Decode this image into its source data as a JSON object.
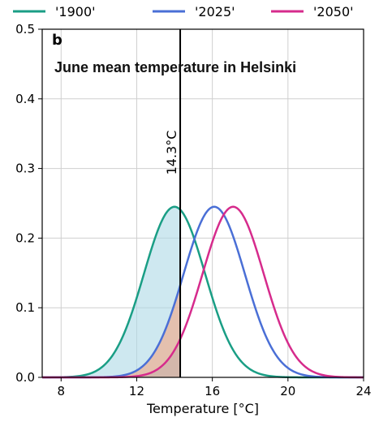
{
  "chart_data": {
    "type": "line",
    "panel_label": "b",
    "title": "June mean temperature in Helsinki",
    "xlabel": "Temperature [°C]",
    "ylabel": "",
    "xlim": [
      7,
      24
    ],
    "ylim": [
      0,
      0.5
    ],
    "xticks": [
      "8",
      "12",
      "16",
      "20",
      "24"
    ],
    "yticks": [
      "0.0",
      "0.1",
      "0.2",
      "0.3",
      "0.4",
      "0.5"
    ],
    "grid": true,
    "legend_position": "top",
    "threshold": {
      "x": 14.3,
      "label": "14.3°C"
    },
    "series": [
      {
        "name": "'1900'",
        "color": "#1a9e85",
        "mean": 14.0,
        "sd": 1.62,
        "peak": 0.245
      },
      {
        "name": "'2025'",
        "color": "#4a6fd6",
        "mean": 16.1,
        "sd": 1.62,
        "peak": 0.245
      },
      {
        "name": "'2050'",
        "color": "#d62b8c",
        "mean": 17.1,
        "sd": 1.62,
        "peak": 0.245
      }
    ],
    "fills": [
      {
        "series": "'1900'",
        "region": "below-threshold",
        "color": "#add8e6"
      },
      {
        "series": "'2025'",
        "region": "below-threshold",
        "color": "#f4a582"
      },
      {
        "series": "'2050'",
        "region": "below-threshold",
        "color": "#c8b0a8"
      }
    ]
  }
}
